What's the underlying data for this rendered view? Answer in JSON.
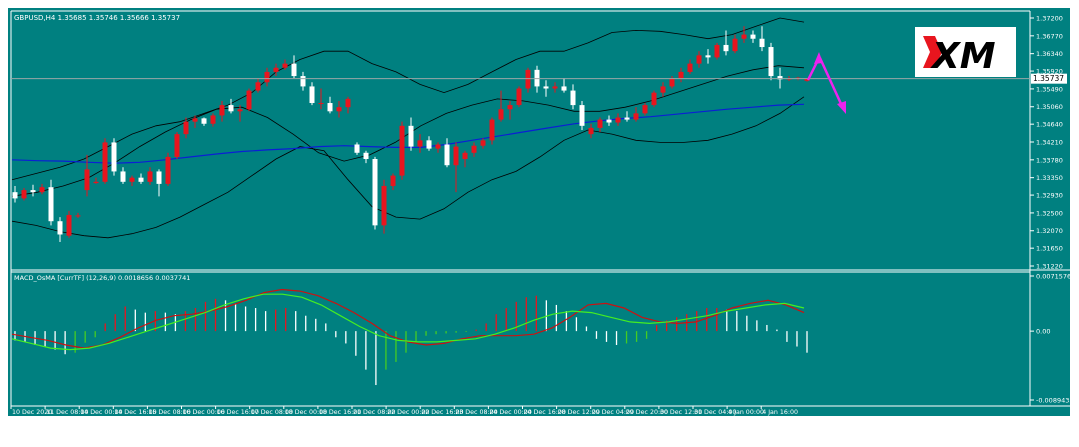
{
  "chart_data": [
    {
      "type": "candlestick",
      "symbol_label": "GBPUSD,H4  1.35685 1.35746 1.35666 1.35737",
      "current_price": "1.35737",
      "y_ticks": [
        "1.37200",
        "1.36770",
        "1.36340",
        "1.35920",
        "1.35490",
        "1.35060",
        "1.34640",
        "1.34210",
        "1.33780",
        "1.33350",
        "1.32930",
        "1.32500",
        "1.32070",
        "1.31650",
        "1.31220"
      ],
      "ylim": [
        1.3122,
        1.372
      ],
      "candles": [
        {
          "o": 1.33,
          "h": 1.3315,
          "l": 1.3275,
          "c": 1.3285
        },
        {
          "o": 1.3285,
          "h": 1.331,
          "l": 1.328,
          "c": 1.3305
        },
        {
          "o": 1.3305,
          "h": 1.3318,
          "l": 1.329,
          "c": 1.33
        },
        {
          "o": 1.33,
          "h": 1.332,
          "l": 1.3295,
          "c": 1.3312
        },
        {
          "o": 1.3312,
          "h": 1.333,
          "l": 1.322,
          "c": 1.323
        },
        {
          "o": 1.323,
          "h": 1.324,
          "l": 1.318,
          "c": 1.3198
        },
        {
          "o": 1.3195,
          "h": 1.3255,
          "l": 1.319,
          "c": 1.3245
        },
        {
          "o": 1.3243,
          "h": 1.325,
          "l": 1.3238,
          "c": 1.3244
        },
        {
          "o": 1.3305,
          "h": 1.339,
          "l": 1.329,
          "c": 1.3355
        },
        {
          "o": 1.3322,
          "h": 1.3335,
          "l": 1.332,
          "c": 1.3325
        },
        {
          "o": 1.3325,
          "h": 1.343,
          "l": 1.332,
          "c": 1.342
        },
        {
          "o": 1.342,
          "h": 1.343,
          "l": 1.334,
          "c": 1.335
        },
        {
          "o": 1.335,
          "h": 1.336,
          "l": 1.332,
          "c": 1.3325
        },
        {
          "o": 1.3325,
          "h": 1.334,
          "l": 1.3315,
          "c": 1.3335
        },
        {
          "o": 1.3335,
          "h": 1.3345,
          "l": 1.332,
          "c": 1.3325
        },
        {
          "o": 1.3325,
          "h": 1.336,
          "l": 1.3318,
          "c": 1.335
        },
        {
          "o": 1.335,
          "h": 1.3355,
          "l": 1.329,
          "c": 1.332
        },
        {
          "o": 1.332,
          "h": 1.3395,
          "l": 1.3315,
          "c": 1.3385
        },
        {
          "o": 1.3385,
          "h": 1.3445,
          "l": 1.338,
          "c": 1.344
        },
        {
          "o": 1.344,
          "h": 1.348,
          "l": 1.343,
          "c": 1.347
        },
        {
          "o": 1.347,
          "h": 1.3485,
          "l": 1.3455,
          "c": 1.3478
        },
        {
          "o": 1.3478,
          "h": 1.348,
          "l": 1.346,
          "c": 1.3465
        },
        {
          "o": 1.3465,
          "h": 1.349,
          "l": 1.3458,
          "c": 1.3485
        },
        {
          "o": 1.3485,
          "h": 1.352,
          "l": 1.347,
          "c": 1.351
        },
        {
          "o": 1.351,
          "h": 1.3525,
          "l": 1.349,
          "c": 1.3495
        },
        {
          "o": 1.3495,
          "h": 1.351,
          "l": 1.347,
          "c": 1.35
        },
        {
          "o": 1.35,
          "h": 1.355,
          "l": 1.3495,
          "c": 1.3545
        },
        {
          "o": 1.3545,
          "h": 1.3575,
          "l": 1.354,
          "c": 1.3565
        },
        {
          "o": 1.3565,
          "h": 1.36,
          "l": 1.3555,
          "c": 1.359
        },
        {
          "o": 1.359,
          "h": 1.361,
          "l": 1.358,
          "c": 1.36
        },
        {
          "o": 1.36,
          "h": 1.362,
          "l": 1.3595,
          "c": 1.361
        },
        {
          "o": 1.361,
          "h": 1.363,
          "l": 1.3575,
          "c": 1.358
        },
        {
          "o": 1.358,
          "h": 1.359,
          "l": 1.3545,
          "c": 1.3555
        },
        {
          "o": 1.3555,
          "h": 1.3565,
          "l": 1.351,
          "c": 1.3515
        },
        {
          "o": 1.3515,
          "h": 1.355,
          "l": 1.35,
          "c": 1.3515
        },
        {
          "o": 1.3515,
          "h": 1.353,
          "l": 1.349,
          "c": 1.3495
        },
        {
          "o": 1.3495,
          "h": 1.352,
          "l": 1.348,
          "c": 1.3505
        },
        {
          "o": 1.3505,
          "h": 1.353,
          "l": 1.349,
          "c": 1.3525
        },
        {
          "o": 1.3415,
          "h": 1.342,
          "l": 1.339,
          "c": 1.3395
        },
        {
          "o": 1.3395,
          "h": 1.34,
          "l": 1.337,
          "c": 1.338
        },
        {
          "o": 1.338,
          "h": 1.3385,
          "l": 1.321,
          "c": 1.322
        },
        {
          "o": 1.322,
          "h": 1.333,
          "l": 1.32,
          "c": 1.3315
        },
        {
          "o": 1.3315,
          "h": 1.3345,
          "l": 1.3305,
          "c": 1.334
        },
        {
          "o": 1.334,
          "h": 1.347,
          "l": 1.333,
          "c": 1.346
        },
        {
          "o": 1.346,
          "h": 1.348,
          "l": 1.34,
          "c": 1.341
        },
        {
          "o": 1.341,
          "h": 1.344,
          "l": 1.3395,
          "c": 1.3425
        },
        {
          "o": 1.3425,
          "h": 1.3435,
          "l": 1.34,
          "c": 1.3405
        },
        {
          "o": 1.3405,
          "h": 1.342,
          "l": 1.3395,
          "c": 1.3415
        },
        {
          "o": 1.3415,
          "h": 1.343,
          "l": 1.336,
          "c": 1.3365
        },
        {
          "o": 1.3365,
          "h": 1.342,
          "l": 1.33,
          "c": 1.341
        },
        {
          "o": 1.338,
          "h": 1.34,
          "l": 1.336,
          "c": 1.3395
        },
        {
          "o": 1.3395,
          "h": 1.342,
          "l": 1.3385,
          "c": 1.3412
        },
        {
          "o": 1.3412,
          "h": 1.343,
          "l": 1.3405,
          "c": 1.3425
        },
        {
          "o": 1.3425,
          "h": 1.348,
          "l": 1.3415,
          "c": 1.3475
        },
        {
          "o": 1.3475,
          "h": 1.3545,
          "l": 1.347,
          "c": 1.35
        },
        {
          "o": 1.35,
          "h": 1.352,
          "l": 1.3475,
          "c": 1.351
        },
        {
          "o": 1.351,
          "h": 1.3555,
          "l": 1.3505,
          "c": 1.355
        },
        {
          "o": 1.355,
          "h": 1.36,
          "l": 1.354,
          "c": 1.3595
        },
        {
          "o": 1.3595,
          "h": 1.3605,
          "l": 1.354,
          "c": 1.3555
        },
        {
          "o": 1.3555,
          "h": 1.357,
          "l": 1.353,
          "c": 1.355
        },
        {
          "o": 1.355,
          "h": 1.3565,
          "l": 1.354,
          "c": 1.3555
        },
        {
          "o": 1.3555,
          "h": 1.3575,
          "l": 1.354,
          "c": 1.3545
        },
        {
          "o": 1.3545,
          "h": 1.356,
          "l": 1.35,
          "c": 1.351
        },
        {
          "o": 1.351,
          "h": 1.352,
          "l": 1.345,
          "c": 1.346
        },
        {
          "o": 1.344,
          "h": 1.3465,
          "l": 1.343,
          "c": 1.3455
        },
        {
          "o": 1.3455,
          "h": 1.348,
          "l": 1.3445,
          "c": 1.3475
        },
        {
          "o": 1.3475,
          "h": 1.3485,
          "l": 1.346,
          "c": 1.3468
        },
        {
          "o": 1.3468,
          "h": 1.349,
          "l": 1.346,
          "c": 1.348
        },
        {
          "o": 1.348,
          "h": 1.3495,
          "l": 1.347,
          "c": 1.3475
        },
        {
          "o": 1.3475,
          "h": 1.3505,
          "l": 1.347,
          "c": 1.349
        },
        {
          "o": 1.349,
          "h": 1.3515,
          "l": 1.3485,
          "c": 1.351
        },
        {
          "o": 1.351,
          "h": 1.3545,
          "l": 1.3505,
          "c": 1.354
        },
        {
          "o": 1.354,
          "h": 1.3565,
          "l": 1.353,
          "c": 1.3555
        },
        {
          "o": 1.3555,
          "h": 1.358,
          "l": 1.355,
          "c": 1.3575
        },
        {
          "o": 1.3575,
          "h": 1.36,
          "l": 1.3565,
          "c": 1.359
        },
        {
          "o": 1.359,
          "h": 1.362,
          "l": 1.3585,
          "c": 1.361
        },
        {
          "o": 1.361,
          "h": 1.364,
          "l": 1.36,
          "c": 1.363
        },
        {
          "o": 1.363,
          "h": 1.3645,
          "l": 1.361,
          "c": 1.3625
        },
        {
          "o": 1.3625,
          "h": 1.366,
          "l": 1.362,
          "c": 1.3655
        },
        {
          "o": 1.3655,
          "h": 1.369,
          "l": 1.363,
          "c": 1.364
        },
        {
          "o": 1.364,
          "h": 1.368,
          "l": 1.3635,
          "c": 1.367
        },
        {
          "o": 1.367,
          "h": 1.37,
          "l": 1.366,
          "c": 1.368
        },
        {
          "o": 1.368,
          "h": 1.369,
          "l": 1.366,
          "c": 1.367
        },
        {
          "o": 1.367,
          "h": 1.37,
          "l": 1.364,
          "c": 1.365
        },
        {
          "o": 1.365,
          "h": 1.366,
          "l": 1.357,
          "c": 1.358
        },
        {
          "o": 1.358,
          "h": 1.36,
          "l": 1.355,
          "c": 1.3572
        },
        {
          "o": 1.3572,
          "h": 1.358,
          "l": 1.3568,
          "c": 1.3574
        },
        {
          "o": 1.3574,
          "h": 1.3578,
          "l": 1.357,
          "c": 1.3576
        },
        {
          "o": 1.35685,
          "h": 1.35746,
          "l": 1.35666,
          "c": 1.35737
        }
      ],
      "bollinger_upper": [
        1.333,
        1.3345,
        1.336,
        1.338,
        1.341,
        1.344,
        1.346,
        1.347,
        1.349,
        1.351,
        1.354,
        1.359,
        1.362,
        1.364,
        1.364,
        1.361,
        1.359,
        1.356,
        1.354,
        1.356,
        1.359,
        1.362,
        1.364,
        1.364,
        1.366,
        1.3685,
        1.369,
        1.3688,
        1.368,
        1.367,
        1.368,
        1.37,
        1.372,
        1.371
      ],
      "bollinger_lower": [
        1.323,
        1.322,
        1.3205,
        1.3195,
        1.319,
        1.32,
        1.3215,
        1.324,
        1.327,
        1.33,
        1.334,
        1.338,
        1.341,
        1.34,
        1.333,
        1.3265,
        1.324,
        1.3235,
        1.326,
        1.33,
        1.333,
        1.335,
        1.3385,
        1.3425,
        1.345,
        1.344,
        1.3425,
        1.342,
        1.342,
        1.3425,
        1.344,
        1.346,
        1.349,
        1.353
      ],
      "bollinger_mid": [
        1.329,
        1.33,
        1.3315,
        1.3335,
        1.337,
        1.341,
        1.3445,
        1.3475,
        1.35,
        1.3505,
        1.348,
        1.344,
        1.3395,
        1.3375,
        1.339,
        1.342,
        1.346,
        1.349,
        1.351,
        1.3525,
        1.352,
        1.351,
        1.3495,
        1.3495,
        1.3505,
        1.352,
        1.354,
        1.356,
        1.358,
        1.3595,
        1.3605,
        1.36
      ],
      "ma_blue": [
        1.3378,
        1.3376,
        1.3375,
        1.3372,
        1.337,
        1.3372,
        1.3378,
        1.3385,
        1.3392,
        1.3398,
        1.3402,
        1.3405,
        1.341,
        1.3412,
        1.341,
        1.3408,
        1.3408,
        1.3415,
        1.3425,
        1.3435,
        1.3445,
        1.3455,
        1.3465,
        1.3472,
        1.3478,
        1.3482,
        1.3488,
        1.3494,
        1.35,
        1.3505,
        1.351,
        1.3512
      ]
    },
    {
      "type": "macd-histogram",
      "label": "MACD_OsMA [CurrTF] (12,26,9) 0.0018656 0.0037741",
      "y_ticks": [
        "0.0071576",
        "0.00",
        "-0.0089435"
      ],
      "ylim": [
        -0.0089435,
        0.0071576
      ],
      "histogram": [
        -0.0012,
        -0.0014,
        -0.0018,
        -0.002,
        -0.0024,
        -0.003,
        -0.0028,
        -0.0015,
        -0.0008,
        0.001,
        0.0022,
        0.0032,
        0.0028,
        0.0024,
        0.0026,
        0.0024,
        0.0022,
        0.0026,
        0.003,
        0.0038,
        0.0042,
        0.004,
        0.0036,
        0.0032,
        0.003,
        0.0026,
        0.0028,
        0.003,
        0.0026,
        0.002,
        0.0016,
        0.001,
        -0.0008,
        -0.0016,
        -0.0032,
        -0.005,
        -0.007,
        -0.005,
        -0.004,
        -0.0028,
        -0.0014,
        -0.0006,
        -0.0004,
        -0.0003,
        -0.0002,
        -0.0001,
        0.0002,
        0.001,
        0.0022,
        0.003,
        0.0038,
        0.0044,
        0.0046,
        0.004,
        0.0034,
        0.0026,
        0.0018,
        0.0006,
        -0.001,
        -0.0014,
        -0.0018,
        -0.0016,
        -0.0014,
        -0.001,
        0.0008,
        0.0014,
        0.0018,
        0.0022,
        0.0026,
        0.003,
        0.003,
        0.0028,
        0.0026,
        0.002,
        0.0014,
        0.0008,
        0.0002,
        -0.0014,
        -0.002,
        -0.0028
      ],
      "macd_line": [
        -0.0004,
        -0.0008,
        -0.0012,
        -0.0018,
        -0.0022,
        -0.0018,
        -0.0008,
        0.0004,
        0.0014,
        0.002,
        0.0022,
        0.0026,
        0.0032,
        0.004,
        0.005,
        0.0054,
        0.0052,
        0.0046,
        0.0036,
        0.0024,
        0.001,
        -0.0006,
        -0.0014,
        -0.0018,
        -0.0016,
        -0.001,
        -0.0006,
        -0.0006,
        -0.0006,
        -0.0004,
        0.0004,
        0.0018,
        0.0034,
        0.0036,
        0.003,
        0.0018,
        0.0012,
        0.001,
        0.0012,
        0.002,
        0.003,
        0.0036,
        0.004,
        0.0034,
        0.0024
      ],
      "signal_line": [
        -0.001,
        -0.0016,
        -0.0022,
        -0.0024,
        -0.0022,
        -0.0016,
        -0.0008,
        0.0,
        0.0008,
        0.0016,
        0.0024,
        0.0034,
        0.0042,
        0.0048,
        0.0048,
        0.0044,
        0.0034,
        0.002,
        0.0006,
        -0.0006,
        -0.0012,
        -0.0014,
        -0.0014,
        -0.0012,
        -0.001,
        -0.0004,
        0.0004,
        0.0014,
        0.0022,
        0.0026,
        0.0024,
        0.0018,
        0.0012,
        0.001,
        0.0012,
        0.0016,
        0.002,
        0.0026,
        0.003,
        0.0034,
        0.0036,
        0.003
      ]
    }
  ],
  "x_labels": [
    "10 Dec 2020",
    "11 Dec 08:00",
    "14 Dec 00:00",
    "14 Dec 16:00",
    "15 Dec 08:00",
    "16 Dec 00:00",
    "16 Dec 16:00",
    "17 Dec 08:00",
    "18 Dec 00:00",
    "18 Dec 16:00",
    "21 Dec 08:00",
    "22 Dec 00:00",
    "22 Dec 16:00",
    "23 Dec 08:00",
    "24 Dec 00:00",
    "24 Dec 16:00",
    "28 Dec 12:00",
    "29 Dec 04:00",
    "29 Dec 20:00",
    "30 Dec 12:00",
    "31 Dec 04:00",
    "4 Jan 00:00",
    "4 Jan 16:00"
  ],
  "logo_text": "XM",
  "colors": {
    "background": "#008080",
    "bull": "#ffffff",
    "bear": "#e8151e",
    "bands": "#000000",
    "ma": "#0b1fd4",
    "hist_pos_up": "#e8151e",
    "hist_pos_down": "#ffffff",
    "hist_neg_down": "#ffffff",
    "hist_neg_up": "#44cc22",
    "macd": "#cc1111",
    "signal": "#44ee22",
    "arrow": "#ee22ee"
  }
}
